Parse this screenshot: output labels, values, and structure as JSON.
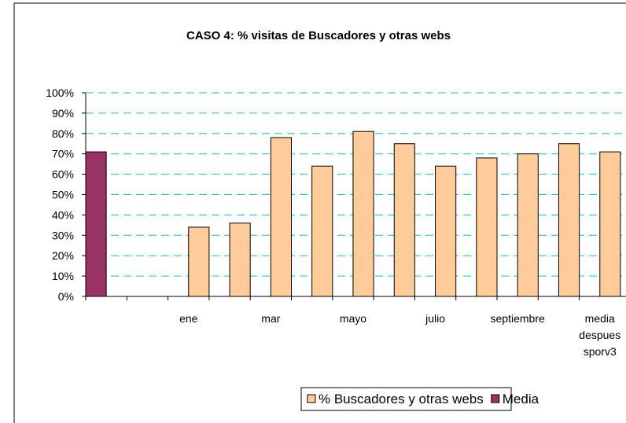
{
  "chart_data": {
    "type": "bar",
    "title": "CASO 4: %  visitas de Buscadores y otras webs",
    "categories": [
      null,
      null,
      "ene",
      null,
      "mar",
      null,
      "mayo",
      null,
      "julio",
      null,
      "septiembre",
      null,
      "media despues sporv3"
    ],
    "series": [
      {
        "name": "% Buscadores y otras webs",
        "color": "#ffcc99",
        "values": [
          null,
          null,
          34,
          36,
          78,
          64,
          81,
          75,
          64,
          68,
          70,
          75,
          71
        ]
      },
      {
        "name": "Media",
        "color": "#993366",
        "values": [
          71,
          null,
          null,
          null,
          null,
          null,
          null,
          null,
          null,
          null,
          null,
          null,
          null
        ]
      }
    ],
    "ylim": [
      0,
      100
    ],
    "yticks": [
      {
        "value": 0,
        "label": "0%"
      },
      {
        "value": 10,
        "label": "10%"
      },
      {
        "value": 20,
        "label": "20%"
      },
      {
        "value": 30,
        "label": "30%"
      },
      {
        "value": 40,
        "label": "40%"
      },
      {
        "value": 50,
        "label": "50%"
      },
      {
        "value": 60,
        "label": "60%"
      },
      {
        "value": 70,
        "label": "70%"
      },
      {
        "value": 80,
        "label": "80%"
      },
      {
        "value": 90,
        "label": "90%"
      },
      {
        "value": 100,
        "label": "100%"
      }
    ],
    "grid": true
  }
}
